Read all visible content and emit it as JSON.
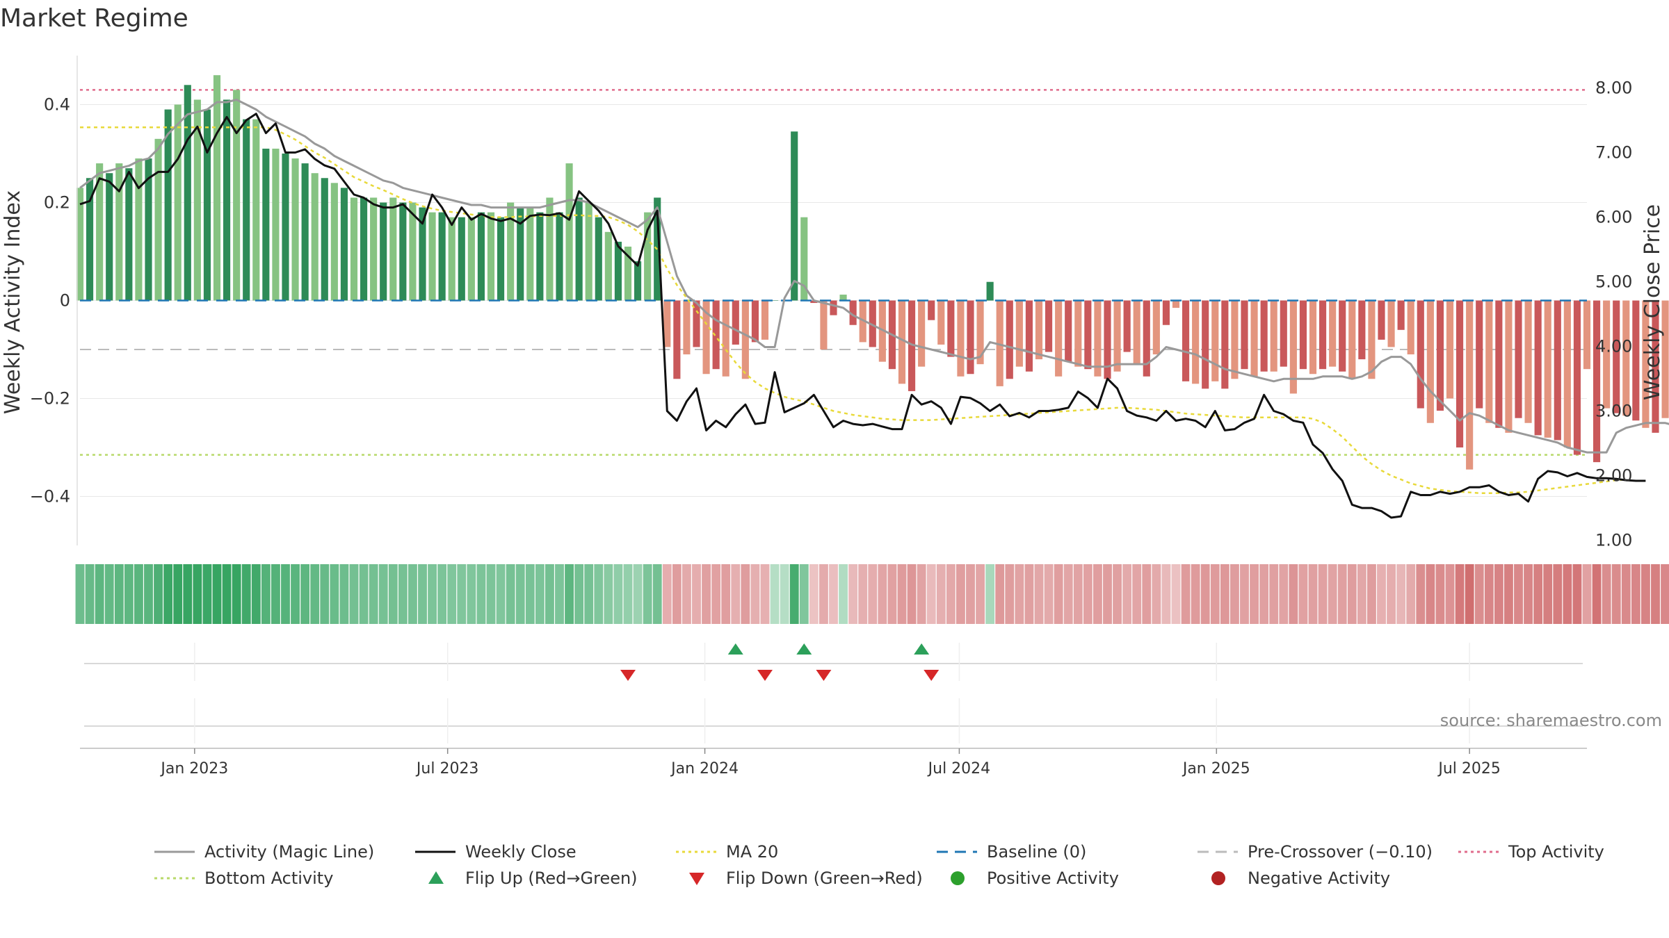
{
  "chart_data": {
    "type": "bar",
    "title": "Market Regime",
    "source": "source: sharemaestro.com",
    "y_left": {
      "label": "Weekly Activity Index",
      "lim": [
        -0.5,
        0.5
      ],
      "ticks": [
        -0.4,
        -0.2,
        0,
        0.2,
        0.4
      ],
      "tick_labels": [
        "−0.4",
        "−0.2",
        "0",
        "0.2",
        "0.4"
      ]
    },
    "y_right": {
      "label": "Weekly Close Price",
      "lim": [
        0.92,
        8.5
      ],
      "ticks": [
        1,
        2,
        3,
        4,
        5,
        6,
        7,
        8
      ],
      "tick_labels": [
        "1.00",
        "2.00",
        "3.00",
        "4.00",
        "5.00",
        "6.00",
        "7.00",
        "8.00"
      ]
    },
    "x_axis": {
      "start": "2022-10-11",
      "end": "2025-09-23",
      "ticks": [
        {
          "date": "2023-01-01",
          "label": "Jan 2023"
        },
        {
          "date": "2023-07-01",
          "label": "Jul 2023"
        },
        {
          "date": "2024-01-01",
          "label": "Jan 2024"
        },
        {
          "date": "2024-07-01",
          "label": "Jul 2024"
        },
        {
          "date": "2025-01-01",
          "label": "Jan 2025"
        },
        {
          "date": "2025-07-01",
          "label": "Jul 2025"
        }
      ]
    },
    "reference_lines": {
      "top_activity": 0.43,
      "bottom_activity": -0.315,
      "baseline": 0,
      "pre_crossover": -0.1
    },
    "colors": {
      "strong_green": "#2e8b57",
      "light_green": "#86c382",
      "strong_red": "#c9585a",
      "light_red": "#e3957f",
      "magic_line": "#999999",
      "close": "#111111",
      "ma20": "#e8d93a",
      "baseline": "#1f77b4",
      "pre_crossover": "#bbbbbb",
      "top": "#e06c8c",
      "bottom": "#b8d96a",
      "flip_up": "#2ca05a",
      "flip_down": "#d62728",
      "positive": "#2ca02c",
      "negative": "#b22222"
    },
    "weeks_start": "2022-10-11",
    "activity": [
      0.23,
      0.25,
      0.28,
      0.26,
      0.28,
      0.27,
      0.29,
      0.29,
      0.33,
      0.39,
      0.4,
      0.44,
      0.41,
      0.39,
      0.46,
      0.41,
      0.43,
      0.37,
      0.37,
      0.31,
      0.31,
      0.3,
      0.29,
      0.28,
      0.26,
      0.25,
      0.24,
      0.23,
      0.21,
      0.21,
      0.21,
      0.2,
      0.21,
      0.2,
      0.2,
      0.19,
      0.18,
      0.18,
      0.17,
      0.17,
      0.17,
      0.18,
      0.18,
      0.17,
      0.2,
      0.19,
      0.19,
      0.18,
      0.21,
      0.18,
      0.28,
      0.21,
      0.2,
      0.17,
      0.14,
      0.12,
      0.11,
      0.08,
      0.18,
      0.21,
      -0.095,
      -0.16,
      -0.11,
      -0.095,
      -0.15,
      -0.14,
      -0.155,
      -0.09,
      -0.16,
      -0.085,
      -0.08,
      0.0,
      0.0,
      0.345,
      0.17,
      -0.005,
      -0.1,
      -0.03,
      0.012,
      -0.05,
      -0.085,
      -0.095,
      -0.125,
      -0.14,
      -0.17,
      -0.185,
      -0.135,
      -0.04,
      -0.09,
      -0.115,
      -0.155,
      -0.15,
      -0.13,
      0.038,
      -0.175,
      -0.16,
      -0.135,
      -0.145,
      -0.12,
      -0.105,
      -0.155,
      -0.125,
      -0.135,
      -0.14,
      -0.155,
      -0.16,
      -0.145,
      -0.105,
      -0.13,
      -0.155,
      -0.11,
      -0.05,
      -0.015,
      -0.165,
      -0.17,
      -0.18,
      -0.165,
      -0.18,
      -0.16,
      -0.14,
      -0.155,
      -0.145,
      -0.145,
      -0.135,
      -0.19,
      -0.14,
      -0.15,
      -0.14,
      -0.135,
      -0.145,
      -0.16,
      -0.12,
      -0.16,
      -0.08,
      -0.095,
      -0.06,
      -0.11,
      -0.22,
      -0.25,
      -0.225,
      -0.2,
      -0.3,
      -0.345,
      -0.22,
      -0.25,
      -0.26,
      -0.27,
      -0.24,
      -0.25,
      -0.275,
      -0.28,
      -0.285,
      -0.3,
      -0.315,
      -0.14,
      -0.33,
      -0.22,
      -0.23,
      -0.235,
      -0.245,
      -0.26,
      -0.27,
      -0.24,
      -0.3,
      -0.285,
      -0.3,
      -0.31
    ],
    "magic_line": [
      0.23,
      0.245,
      0.26,
      0.265,
      0.27,
      0.275,
      0.285,
      0.29,
      0.31,
      0.34,
      0.36,
      0.38,
      0.385,
      0.39,
      0.405,
      0.405,
      0.41,
      0.4,
      0.39,
      0.375,
      0.365,
      0.355,
      0.345,
      0.335,
      0.32,
      0.31,
      0.295,
      0.285,
      0.275,
      0.265,
      0.255,
      0.245,
      0.24,
      0.23,
      0.225,
      0.22,
      0.215,
      0.21,
      0.205,
      0.2,
      0.195,
      0.195,
      0.19,
      0.19,
      0.19,
      0.19,
      0.19,
      0.19,
      0.195,
      0.2,
      0.205,
      0.205,
      0.2,
      0.19,
      0.18,
      0.17,
      0.16,
      0.15,
      0.165,
      0.19,
      0.12,
      0.05,
      0.01,
      -0.005,
      -0.025,
      -0.04,
      -0.05,
      -0.06,
      -0.07,
      -0.08,
      -0.095,
      -0.095,
      0.005,
      0.04,
      0.03,
      0.0,
      -0.005,
      -0.01,
      -0.015,
      -0.03,
      -0.04,
      -0.05,
      -0.06,
      -0.07,
      -0.08,
      -0.09,
      -0.095,
      -0.1,
      -0.105,
      -0.11,
      -0.115,
      -0.12,
      -0.115,
      -0.085,
      -0.09,
      -0.095,
      -0.1,
      -0.105,
      -0.11,
      -0.115,
      -0.12,
      -0.125,
      -0.13,
      -0.135,
      -0.135,
      -0.135,
      -0.13,
      -0.13,
      -0.13,
      -0.13,
      -0.115,
      -0.095,
      -0.1,
      -0.105,
      -0.11,
      -0.12,
      -0.13,
      -0.14,
      -0.145,
      -0.15,
      -0.155,
      -0.16,
      -0.165,
      -0.16,
      -0.16,
      -0.16,
      -0.16,
      -0.155,
      -0.155,
      -0.155,
      -0.16,
      -0.155,
      -0.145,
      -0.125,
      -0.115,
      -0.115,
      -0.13,
      -0.16,
      -0.185,
      -0.205,
      -0.225,
      -0.245,
      -0.23,
      -0.235,
      -0.245,
      -0.255,
      -0.265,
      -0.27,
      -0.275,
      -0.28,
      -0.285,
      -0.29,
      -0.3,
      -0.305,
      -0.31,
      -0.31,
      -0.31,
      -0.27,
      -0.26,
      -0.255,
      -0.25,
      -0.25,
      -0.25,
      -0.255,
      -0.26,
      -0.27,
      -0.275,
      -0.28
    ],
    "close": [
      6.2,
      6.25,
      6.6,
      6.55,
      6.4,
      6.7,
      6.45,
      6.6,
      6.7,
      6.7,
      6.9,
      7.2,
      7.4,
      7.0,
      7.3,
      7.55,
      7.3,
      7.5,
      7.6,
      7.3,
      7.45,
      7.0,
      7.0,
      7.05,
      6.9,
      6.8,
      6.75,
      6.55,
      6.35,
      6.3,
      6.2,
      6.15,
      6.15,
      6.2,
      6.05,
      5.9,
      6.35,
      6.15,
      5.88,
      6.15,
      5.96,
      6.05,
      5.98,
      5.94,
      5.98,
      5.9,
      6.02,
      6.04,
      6.03,
      6.06,
      5.96,
      6.4,
      6.25,
      6.1,
      5.9,
      5.55,
      5.4,
      5.25,
      5.8,
      6.1,
      3.0,
      2.85,
      3.15,
      3.35,
      2.7,
      2.85,
      2.75,
      2.95,
      3.1,
      2.8,
      2.82,
      3.6,
      2.98,
      3.05,
      3.12,
      3.25,
      3.0,
      2.75,
      2.85,
      2.8,
      2.78,
      2.8,
      2.76,
      2.72,
      2.72,
      3.25,
      3.1,
      3.15,
      3.05,
      2.8,
      3.22,
      3.2,
      3.12,
      3.0,
      3.1,
      2.92,
      2.97,
      2.9,
      3.0,
      3.0,
      3.02,
      3.05,
      3.3,
      3.2,
      3.05,
      3.5,
      3.35,
      3.0,
      2.93,
      2.9,
      2.85,
      3.0,
      2.85,
      2.88,
      2.85,
      2.75,
      3.0,
      2.7,
      2.72,
      2.82,
      2.88,
      3.25,
      3.0,
      2.95,
      2.85,
      2.82,
      2.48,
      2.35,
      2.1,
      1.92,
      1.55,
      1.5,
      1.5,
      1.45,
      1.35,
      1.37,
      1.75,
      1.7,
      1.7,
      1.75,
      1.72,
      1.75,
      1.82,
      1.82,
      1.85,
      1.75,
      1.7,
      1.72,
      1.6,
      1.95,
      2.07,
      2.05,
      1.99,
      2.04,
      1.98,
      1.96,
      1.96,
      1.95,
      1.93,
      1.92,
      1.92
    ],
    "ma20": [
      7.39,
      7.39,
      7.39,
      7.39,
      7.39,
      7.39,
      7.39,
      7.39,
      7.39,
      7.39,
      7.39,
      7.39,
      7.39,
      7.39,
      7.39,
      7.39,
      7.39,
      7.39,
      7.39,
      7.39,
      7.35,
      7.28,
      7.2,
      7.1,
      7.0,
      6.92,
      6.82,
      6.72,
      6.62,
      6.55,
      6.48,
      6.42,
      6.35,
      6.28,
      6.22,
      6.17,
      6.13,
      6.1,
      6.08,
      6.06,
      6.04,
      6.02,
      6.0,
      6.0,
      6.0,
      6.01,
      6.01,
      6.02,
      6.02,
      6.02,
      6.03,
      6.03,
      6.02,
      6.02,
      6.0,
      5.95,
      5.88,
      5.78,
      5.65,
      5.5,
      5.2,
      4.95,
      4.75,
      4.55,
      4.35,
      4.15,
      3.95,
      3.75,
      3.58,
      3.45,
      3.35,
      3.28,
      3.22,
      3.18,
      3.15,
      3.1,
      3.05,
      3.0,
      2.97,
      2.94,
      2.92,
      2.9,
      2.88,
      2.87,
      2.86,
      2.86,
      2.86,
      2.86,
      2.87,
      2.88,
      2.89,
      2.9,
      2.91,
      2.92,
      2.93,
      2.94,
      2.95,
      2.96,
      2.97,
      2.98,
      2.99,
      3.0,
      3.01,
      3.02,
      3.03,
      3.04,
      3.05,
      3.05,
      3.04,
      3.03,
      3.02,
      3.0,
      2.98,
      2.96,
      2.95,
      2.94,
      2.93,
      2.92,
      2.91,
      2.9,
      2.9,
      2.9,
      2.9,
      2.9,
      2.9,
      2.9,
      2.88,
      2.82,
      2.72,
      2.6,
      2.45,
      2.3,
      2.18,
      2.08,
      2.0,
      1.94,
      1.88,
      1.84,
      1.8,
      1.78,
      1.76,
      1.75,
      1.74,
      1.73,
      1.73,
      1.73,
      1.74,
      1.74,
      1.75,
      1.77,
      1.79,
      1.81,
      1.83,
      1.85,
      1.87,
      1.89,
      1.91,
      1.93,
      1.94
    ],
    "ribbon_color_by_week": "derived from activity sign and magnitude",
    "flip_up_dates": [
      "2024-01-23",
      "2024-03-12",
      "2024-06-04"
    ],
    "flip_down_dates": [
      "2023-11-07",
      "2024-02-13",
      "2024-03-26",
      "2024-06-11"
    ],
    "legend": {
      "placement": "bottom",
      "entries": [
        {
          "label": "Activity (Magic Line)",
          "kind": "line",
          "color": "#999999",
          "dash": "solid"
        },
        {
          "label": "Weekly Close",
          "kind": "line",
          "color": "#111111",
          "dash": "solid"
        },
        {
          "label": "MA 20",
          "kind": "line",
          "color": "#e8d93a",
          "dash": "dot"
        },
        {
          "label": "Baseline (0)",
          "kind": "line",
          "color": "#1f77b4",
          "dash": "dash"
        },
        {
          "label": "Pre-Crossover (−0.10)",
          "kind": "line",
          "color": "#bbbbbb",
          "dash": "dash"
        },
        {
          "label": "Top Activity",
          "kind": "line",
          "color": "#e06c8c",
          "dash": "dot"
        },
        {
          "label": "Bottom Activity",
          "kind": "line",
          "color": "#b8d96a",
          "dash": "dot"
        },
        {
          "label": "Flip Up (Red→Green)",
          "kind": "tri-up",
          "color": "#2ca05a"
        },
        {
          "label": "Flip Down (Green→Red)",
          "kind": "tri-down",
          "color": "#d62728"
        },
        {
          "label": "Positive Activity",
          "kind": "dot",
          "color": "#2ca02c"
        },
        {
          "label": "Negative Activity",
          "kind": "dot",
          "color": "#b22222"
        }
      ]
    }
  }
}
